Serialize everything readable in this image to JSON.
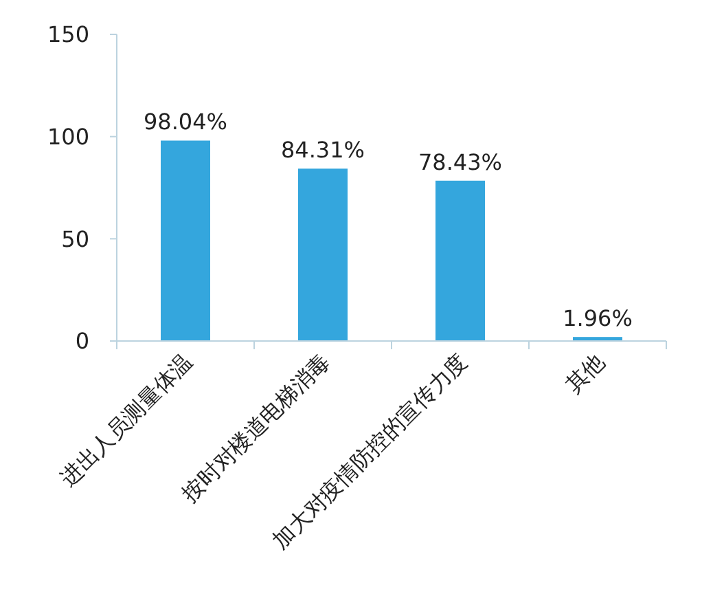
{
  "chart_data": {
    "type": "bar",
    "categories": [
      "进出人员测量体温",
      "按时对楼道电梯消毒",
      "加大对疫情防控的宣传力度",
      "其他"
    ],
    "values": [
      98.04,
      84.31,
      78.43,
      1.96
    ],
    "color": "#34a6dd",
    "value_labels": [
      "98.04%",
      "84.31%",
      "78.43%",
      "1.96%"
    ],
    "ylim": [
      0,
      150
    ],
    "yticks": [
      0,
      50,
      100,
      150
    ],
    "grid": false
  }
}
